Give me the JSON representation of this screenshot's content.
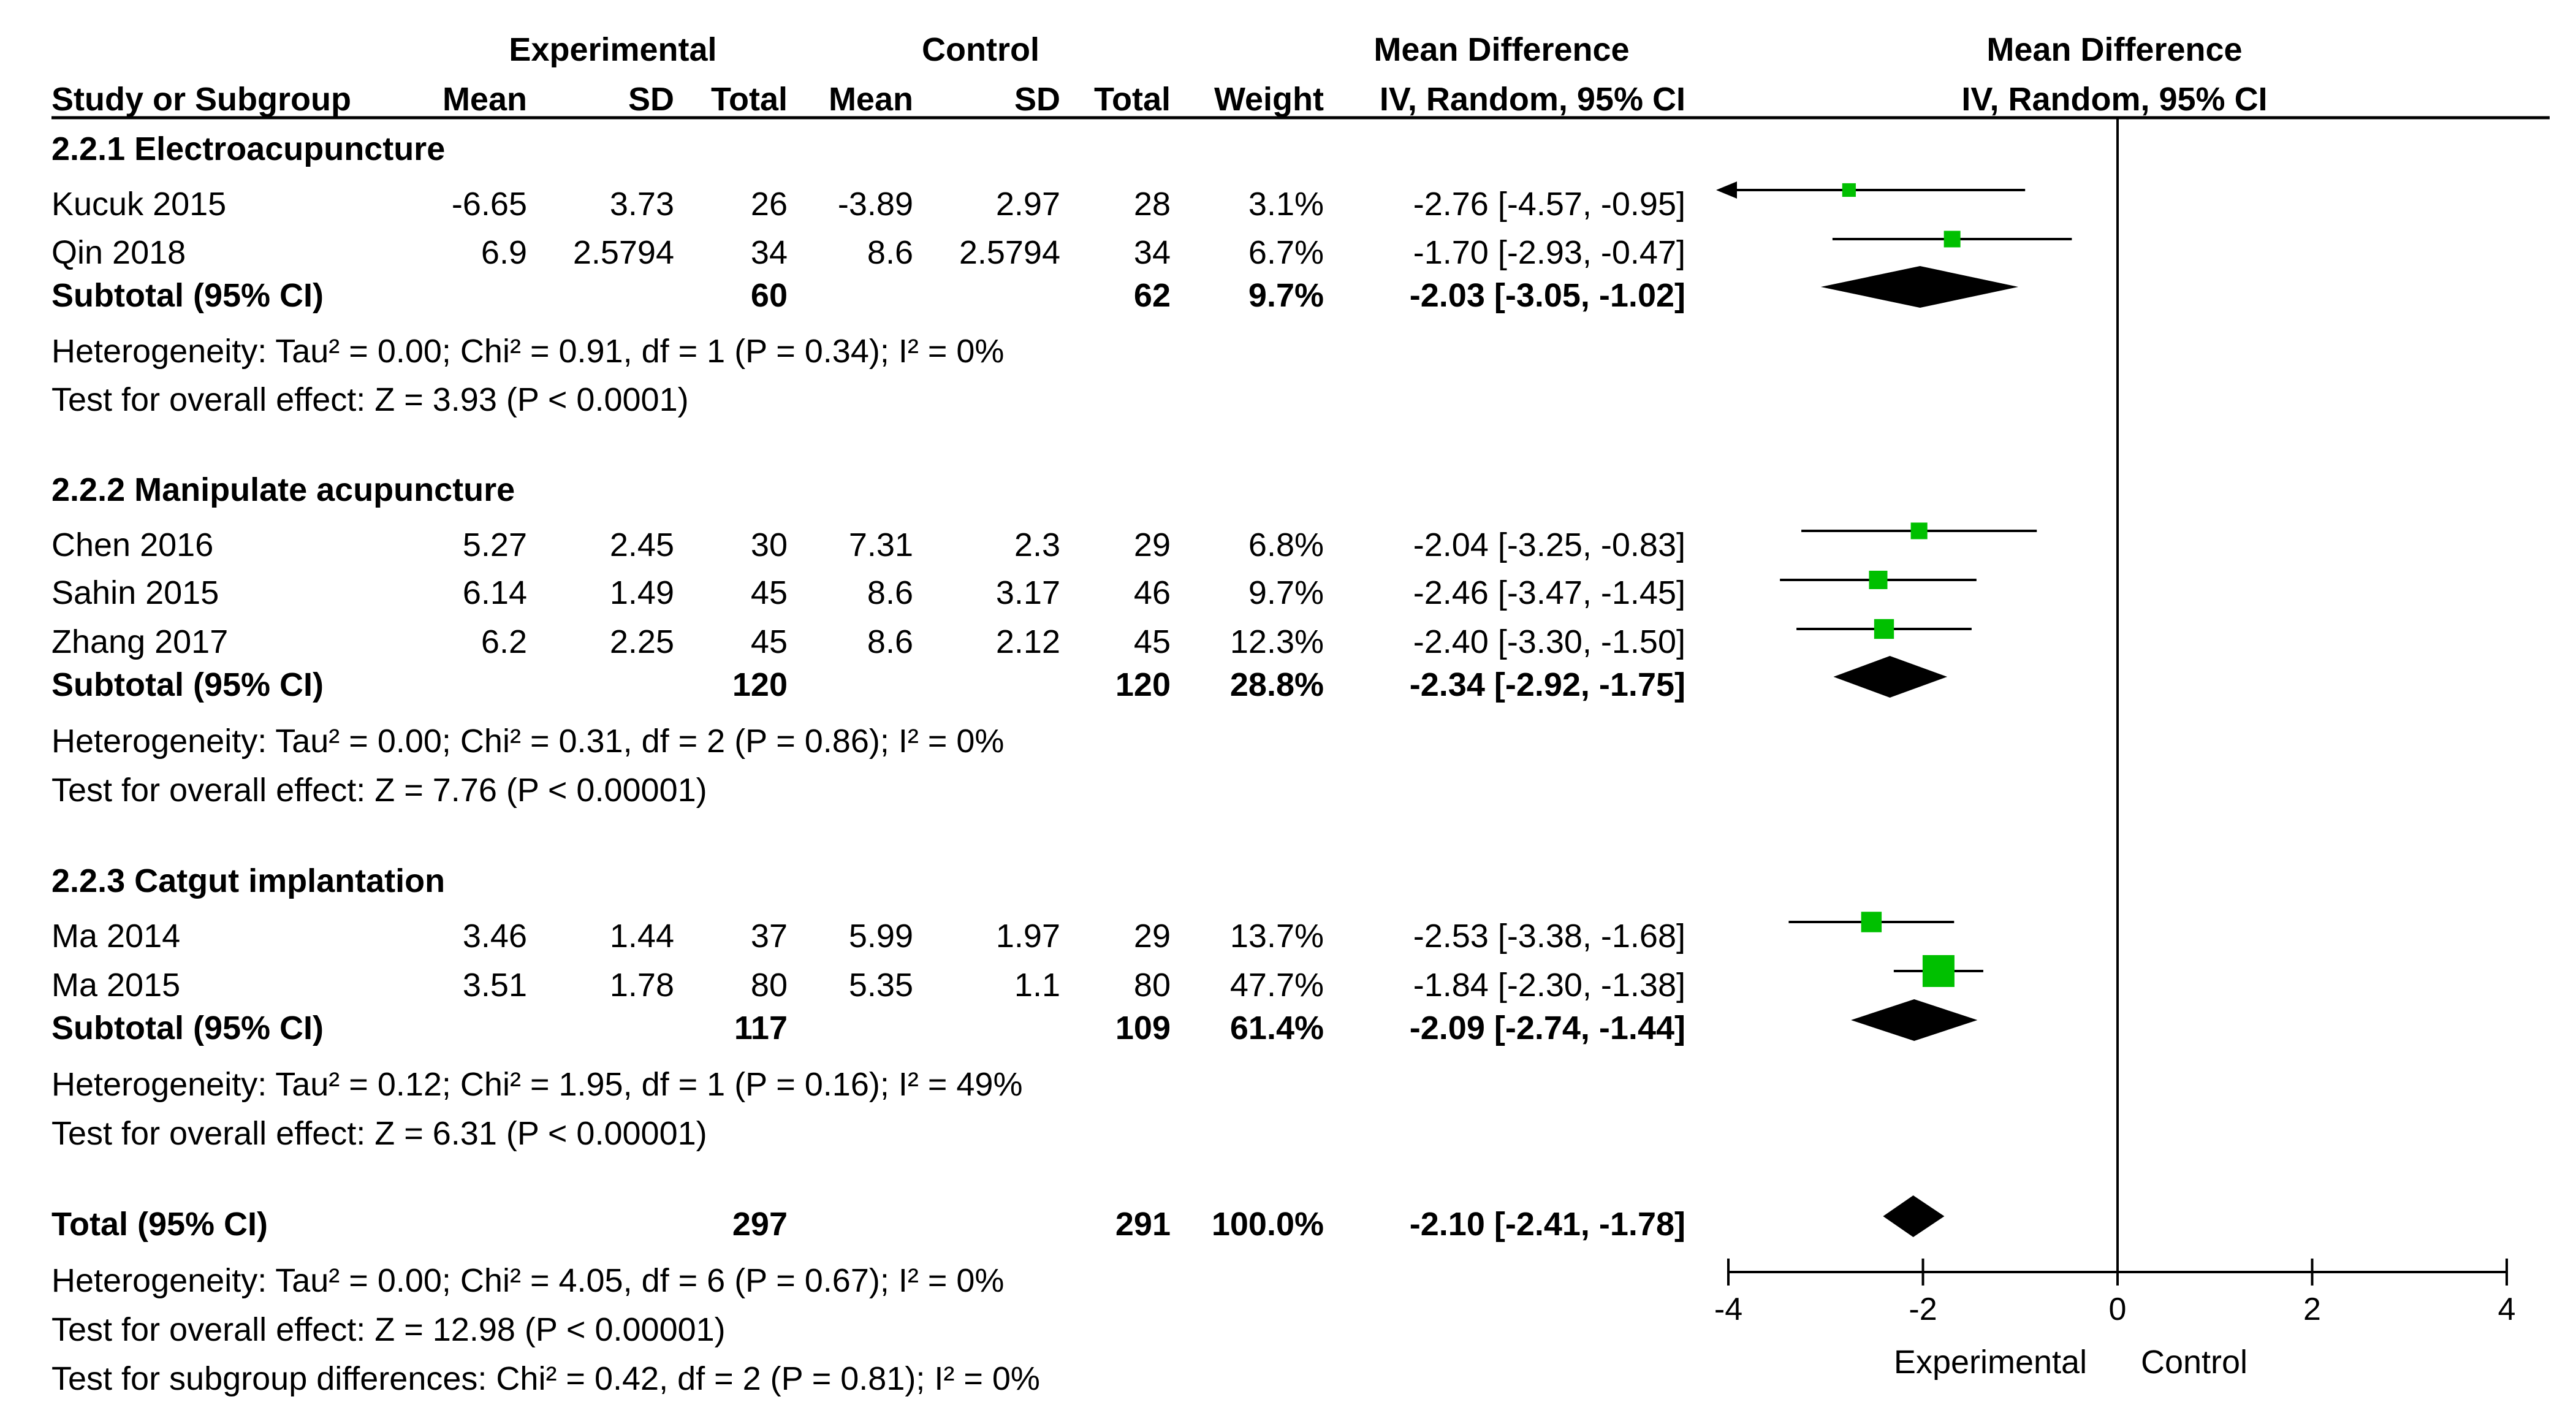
{
  "header": {
    "experimental": "Experimental",
    "control": "Control",
    "mean_difference": "Mean Difference",
    "plot_title": "Mean Difference",
    "col_study": "Study or Subgroup",
    "col_mean_e": "Mean",
    "col_sd_e": "SD",
    "col_total_e": "Total",
    "col_mean_c": "Mean",
    "col_sd_c": "SD",
    "col_total_c": "Total",
    "col_weight": "Weight",
    "col_ci": "IV, Random, 95% CI",
    "plot_method": "IV, Random, 95% CI"
  },
  "subgroups": [
    {
      "title": "2.2.1 Electroacupuncture",
      "studies": [
        {
          "name": "Kucuk 2015",
          "mean_e": "-6.65",
          "sd_e": "3.73",
          "total_e": "26",
          "mean_c": "-3.89",
          "sd_c": "2.97",
          "total_c": "28",
          "weight": "3.1%",
          "ci": "-2.76 [-4.57, -0.95]"
        },
        {
          "name": "Qin 2018",
          "mean_e": "6.9",
          "sd_e": "2.5794",
          "total_e": "34",
          "mean_c": "8.6",
          "sd_c": "2.5794",
          "total_c": "34",
          "weight": "6.7%",
          "ci": "-1.70 [-2.93, -0.47]"
        }
      ],
      "subtotal": {
        "label": "Subtotal (95% CI)",
        "total_e": "60",
        "total_c": "62",
        "weight": "9.7%",
        "ci": "-2.03 [-3.05, -1.02]"
      },
      "heterogeneity": "Heterogeneity: Tau² = 0.00; Chi² = 0.91, df = 1 (P = 0.34); I² = 0%",
      "overall": "Test for overall effect: Z = 3.93 (P < 0.0001)"
    },
    {
      "title": "2.2.2 Manipulate acupuncture",
      "studies": [
        {
          "name": "Chen 2016",
          "mean_e": "5.27",
          "sd_e": "2.45",
          "total_e": "30",
          "mean_c": "7.31",
          "sd_c": "2.3",
          "total_c": "29",
          "weight": "6.8%",
          "ci": "-2.04 [-3.25, -0.83]"
        },
        {
          "name": "Sahin 2015",
          "mean_e": "6.14",
          "sd_e": "1.49",
          "total_e": "45",
          "mean_c": "8.6",
          "sd_c": "3.17",
          "total_c": "46",
          "weight": "9.7%",
          "ci": "-2.46 [-3.47, -1.45]"
        },
        {
          "name": "Zhang 2017",
          "mean_e": "6.2",
          "sd_e": "2.25",
          "total_e": "45",
          "mean_c": "8.6",
          "sd_c": "2.12",
          "total_c": "45",
          "weight": "12.3%",
          "ci": "-2.40 [-3.30, -1.50]"
        }
      ],
      "subtotal": {
        "label": "Subtotal (95% CI)",
        "total_e": "120",
        "total_c": "120",
        "weight": "28.8%",
        "ci": "-2.34 [-2.92, -1.75]"
      },
      "heterogeneity": "Heterogeneity: Tau² = 0.00; Chi² = 0.31, df = 2 (P = 0.86); I² = 0%",
      "overall": "Test for overall effect: Z = 7.76 (P < 0.00001)"
    },
    {
      "title": "2.2.3 Catgut implantation",
      "studies": [
        {
          "name": "Ma 2014",
          "mean_e": "3.46",
          "sd_e": "1.44",
          "total_e": "37",
          "mean_c": "5.99",
          "sd_c": "1.97",
          "total_c": "29",
          "weight": "13.7%",
          "ci": "-2.53 [-3.38, -1.68]"
        },
        {
          "name": "Ma 2015",
          "mean_e": "3.51",
          "sd_e": "1.78",
          "total_e": "80",
          "mean_c": "5.35",
          "sd_c": "1.1",
          "total_c": "80",
          "weight": "47.7%",
          "ci": "-1.84 [-2.30, -1.38]"
        }
      ],
      "subtotal": {
        "label": "Subtotal (95% CI)",
        "total_e": "117",
        "total_c": "109",
        "weight": "61.4%",
        "ci": "-2.09 [-2.74, -1.44]"
      },
      "heterogeneity": "Heterogeneity: Tau² = 0.12; Chi² = 1.95, df = 1 (P = 0.16); I² = 49%",
      "overall": "Test for overall effect: Z = 6.31 (P < 0.00001)"
    }
  ],
  "total": {
    "label": "Total (95% CI)",
    "total_e": "297",
    "total_c": "291",
    "weight": "100.0%",
    "ci": "-2.10 [-2.41, -1.78]",
    "heterogeneity": "Heterogeneity: Tau² = 0.00; Chi² = 4.05, df = 6 (P = 0.67); I² = 0%",
    "overall": "Test for overall effect: Z = 12.98 (P < 0.00001)",
    "subgroup_diff": "Test for subgroup differences: Chi² = 0.42, df = 2 (P = 0.81); I² = 0%"
  },
  "axis_labels": {
    "left": "Experimental",
    "right": "Control"
  },
  "colors": {
    "study_marker": "#00c000",
    "diamond": "#000000",
    "line": "#000000"
  },
  "chart_data": {
    "type": "forest",
    "xlim": [
      -4,
      4
    ],
    "xticks": [
      -4,
      -2,
      0,
      2,
      4
    ],
    "null_line": 0,
    "studies": [
      {
        "name": "Kucuk 2015",
        "md": -2.76,
        "lo": -4.57,
        "hi": -0.95,
        "weight": 3.1,
        "arrow_left": true
      },
      {
        "name": "Qin 2018",
        "md": -1.7,
        "lo": -2.93,
        "hi": -0.47,
        "weight": 6.7
      },
      {
        "name": "Chen 2016",
        "md": -2.04,
        "lo": -3.25,
        "hi": -0.83,
        "weight": 6.8
      },
      {
        "name": "Sahin 2015",
        "md": -2.46,
        "lo": -3.47,
        "hi": -1.45,
        "weight": 9.7
      },
      {
        "name": "Zhang 2017",
        "md": -2.4,
        "lo": -3.3,
        "hi": -1.5,
        "weight": 12.3
      },
      {
        "name": "Ma 2014",
        "md": -2.53,
        "lo": -3.38,
        "hi": -1.68,
        "weight": 13.7
      },
      {
        "name": "Ma 2015",
        "md": -1.84,
        "lo": -2.3,
        "hi": -1.38,
        "weight": 47.7
      }
    ],
    "summaries": [
      {
        "name": "Subtotal 2.2.1",
        "md": -2.03,
        "lo": -3.05,
        "hi": -1.02
      },
      {
        "name": "Subtotal 2.2.2",
        "md": -2.34,
        "lo": -2.92,
        "hi": -1.75
      },
      {
        "name": "Subtotal 2.2.3",
        "md": -2.09,
        "lo": -2.74,
        "hi": -1.44
      },
      {
        "name": "Total",
        "md": -2.1,
        "lo": -2.41,
        "hi": -1.78
      }
    ]
  }
}
